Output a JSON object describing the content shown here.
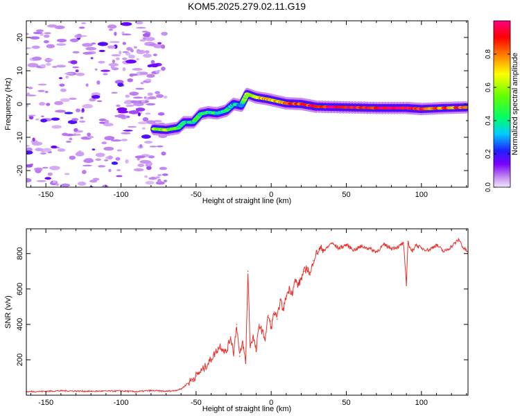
{
  "title": "KOM5.2025.279.02.11.G19",
  "colors": {
    "snr_line": "#e8302a",
    "axis": "#000000"
  },
  "chart_data": [
    {
      "type": "heatmap",
      "name": "spectrogram",
      "xlabel": "Height of straight line (km)",
      "ylabel": "Frequency (Hz)",
      "xlim": [
        -163,
        131
      ],
      "ylim": [
        -25,
        25
      ],
      "xticks": [
        -150,
        -100,
        -50,
        0,
        50,
        100
      ],
      "xtick_labels": [
        "-150",
        "-100",
        "-50",
        "0",
        "50",
        "100"
      ],
      "yticks": [
        -20,
        -10,
        0,
        10,
        20
      ],
      "ytick_labels": [
        "-20",
        "-10",
        "0",
        "10",
        "20"
      ],
      "colorbar": {
        "label": "Normalized spectral amplitude",
        "range": [
          0,
          1
        ],
        "ticks": [
          0.0,
          0.2,
          0.4,
          0.6,
          0.8
        ],
        "tick_labels": [
          "0.0",
          "0.2",
          "0.4",
          "0.6",
          "0.8"
        ]
      },
      "signal_track": {
        "description": "frequency of strongest spectral ridge vs height",
        "points": [
          {
            "x": -78,
            "y": -7.5
          },
          {
            "x": -70,
            "y": -7.8
          },
          {
            "x": -62,
            "y": -7.2
          },
          {
            "x": -58,
            "y": -5.5
          },
          {
            "x": -52,
            "y": -5.5
          },
          {
            "x": -47,
            "y": -3.0
          },
          {
            "x": -42,
            "y": -2.5
          },
          {
            "x": -36,
            "y": -2.8
          },
          {
            "x": -30,
            "y": -2.0
          },
          {
            "x": -25,
            "y": 0.0
          },
          {
            "x": -20,
            "y": -0.5
          },
          {
            "x": -16,
            "y": 3.0
          },
          {
            "x": -10,
            "y": 2.0
          },
          {
            "x": -3,
            "y": 1.5
          },
          {
            "x": 4,
            "y": 0.8
          },
          {
            "x": 10,
            "y": 0.2
          },
          {
            "x": 20,
            "y": 0.0
          },
          {
            "x": 30,
            "y": -0.8
          },
          {
            "x": 50,
            "y": -1.0
          },
          {
            "x": 70,
            "y": -1.2
          },
          {
            "x": 90,
            "y": -1.2
          },
          {
            "x": 100,
            "y": -1.5
          },
          {
            "x": 115,
            "y": -1.2
          },
          {
            "x": 131,
            "y": -1.0
          }
        ],
        "amplitude": [
          0.55,
          0.6,
          0.5,
          0.35,
          0.4,
          0.45,
          0.5,
          0.4,
          0.45,
          0.3,
          0.35,
          0.6,
          0.7,
          0.75,
          0.7,
          0.8,
          0.85,
          0.9,
          0.95,
          0.9,
          0.95,
          0.9,
          0.8,
          0.85
        ]
      },
      "noise_region_x": [
        -163,
        -70
      ]
    },
    {
      "type": "line",
      "name": "snr",
      "xlabel": "Height of straight line (km)",
      "ylabel": "SNR (v/v)",
      "xlim": [
        -163,
        131
      ],
      "ylim": [
        0,
        940
      ],
      "xticks": [
        -150,
        -100,
        -50,
        0,
        50,
        100
      ],
      "xtick_labels": [
        "-150",
        "-100",
        "-50",
        "0",
        "50",
        "100"
      ],
      "yticks": [
        200,
        400,
        600,
        800
      ],
      "ytick_labels": [
        "200",
        "400",
        "600",
        "800"
      ],
      "series": [
        {
          "name": "SNR",
          "x": [
            -163,
            -150,
            -140,
            -120,
            -100,
            -90,
            -80,
            -70,
            -65,
            -60,
            -55,
            -50,
            -45,
            -42,
            -38,
            -34,
            -30,
            -27,
            -25,
            -23,
            -21,
            -19,
            -17,
            -15.5,
            -14,
            -12,
            -10,
            -8,
            -6,
            -4,
            -2,
            0,
            2,
            4,
            6,
            8,
            10,
            12,
            14,
            16,
            18,
            20,
            22,
            24,
            26,
            28,
            30,
            33,
            36,
            40,
            45,
            50,
            55,
            60,
            65,
            70,
            75,
            80,
            85,
            88,
            90,
            91,
            92,
            94,
            96,
            100,
            105,
            110,
            115,
            120,
            125,
            128,
            131
          ],
          "values": [
            20,
            22,
            25,
            22,
            24,
            20,
            26,
            22,
            25,
            35,
            70,
            110,
            150,
            180,
            230,
            280,
            240,
            330,
            240,
            400,
            220,
            300,
            180,
            700,
            280,
            330,
            250,
            400,
            360,
            320,
            450,
            380,
            470,
            430,
            540,
            480,
            560,
            600,
            580,
            650,
            620,
            660,
            700,
            720,
            680,
            760,
            800,
            830,
            820,
            860,
            830,
            850,
            820,
            840,
            830,
            810,
            850,
            830,
            840,
            860,
            620,
            870,
            840,
            810,
            850,
            830,
            820,
            850,
            810,
            840,
            880,
            830,
            810
          ]
        }
      ]
    }
  ]
}
